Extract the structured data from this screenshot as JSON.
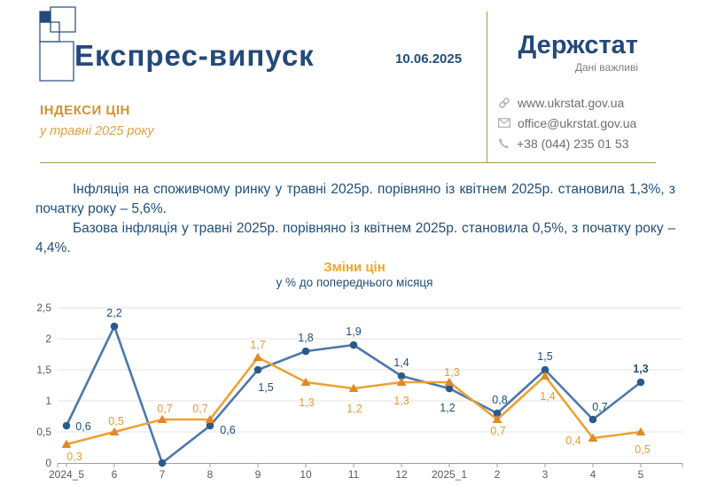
{
  "header": {
    "title": "Експрес-випуск",
    "date": "10.06.2025",
    "brand": {
      "name": "Держстат",
      "tagline": "Дані важливі"
    },
    "contacts": [
      {
        "icon": "link-icon",
        "text": "www.ukrstat.gov.ua"
      },
      {
        "icon": "email-icon",
        "text": "office@ukrstat.gov.ua"
      },
      {
        "icon": "phone-icon",
        "text": "+38 (044) 235 01 53"
      }
    ],
    "subject": {
      "heading": "ІНДЕКСИ ЦІН",
      "subheading": "у травні 2025 року"
    }
  },
  "body": {
    "paragraphs": [
      "Інфляція на споживчому ринку у травні 2025р. порівняно із квітнем 2025р. становила 1,3%, з початку року – 5,6%.",
      "Базова інфляція у травні 2025р. порівняно із квітнем 2025р. становила 0,5%, з початку року – 4,4%."
    ]
  },
  "chart_data": {
    "type": "line",
    "title": "Зміни цін",
    "subtitle": "у % до попереднього місяця",
    "categories": [
      "2024_5",
      "6",
      "7",
      "8",
      "9",
      "10",
      "11",
      "12",
      "2025_1",
      "2",
      "3",
      "4",
      "5"
    ],
    "ylim": [
      0,
      2.5
    ],
    "yticks": [
      "0",
      "0,5",
      "1",
      "1,5",
      "2",
      "2,5"
    ],
    "grid": true,
    "legend": "none",
    "colors": {
      "grid": "#e3e3e3",
      "axis": "#9e9e9e",
      "tick_text": "#595959"
    },
    "series": [
      {
        "marker": "circle",
        "line_color": "#4b79ab",
        "marker_color": "#2a5a8c",
        "label_color": "#1f4e79",
        "values": [
          0.6,
          2.2,
          0.0,
          0.6,
          1.5,
          1.8,
          1.9,
          1.4,
          1.2,
          0.8,
          1.5,
          0.7,
          1.3
        ],
        "labels": [
          {
            "text": "0,6",
            "dx": 19,
            "dy": 5
          },
          {
            "text": "2,2",
            "dx": 0,
            "dy": -11
          },
          null,
          {
            "text": "0,6",
            "dx": 20,
            "dy": 9
          },
          {
            "text": "1,5",
            "dx": 9,
            "dy": 24
          },
          {
            "text": "1,8",
            "dx": 0,
            "dy": -11
          },
          {
            "text": "1,9",
            "dx": 0,
            "dy": -11
          },
          {
            "text": "1,4",
            "dx": 0,
            "dy": -11
          },
          {
            "text": "1,2",
            "dx": -2,
            "dy": 26
          },
          {
            "text": "0,8",
            "dx": 3,
            "dy": -11
          },
          {
            "text": "1,5",
            "dx": 0,
            "dy": -11
          },
          {
            "text": "0,7",
            "dx": 8,
            "dy": -10
          },
          {
            "text": "1,3",
            "dx": 0,
            "dy": -11,
            "bold": true
          }
        ]
      },
      {
        "marker": "triangle",
        "line_color": "#eda133",
        "marker_color": "#e1882a",
        "label_color": "#e29a36",
        "values": [
          0.3,
          0.5,
          0.7,
          0.7,
          1.7,
          1.3,
          1.2,
          1.3,
          1.3,
          0.7,
          1.4,
          0.4,
          0.5
        ],
        "labels": [
          {
            "text": "0,3",
            "dx": 9,
            "dy": 18
          },
          {
            "text": "0,5",
            "dx": 2,
            "dy": -8
          },
          {
            "text": "0,7",
            "dx": 3,
            "dy": -8
          },
          {
            "text": "0,7",
            "dx": -11,
            "dy": -8
          },
          {
            "text": "1,7",
            "dx": 0,
            "dy": -10
          },
          {
            "text": "1,3",
            "dx": 1,
            "dy": 27
          },
          {
            "text": "1,2",
            "dx": 1,
            "dy": 27
          },
          {
            "text": "1,3",
            "dx": 0,
            "dy": 25
          },
          {
            "text": "1,3",
            "dx": 3,
            "dy": -7
          },
          {
            "text": "0,7",
            "dx": 1,
            "dy": 17
          },
          {
            "text": "1,4",
            "dx": 3,
            "dy": 27
          },
          {
            "text": "0,4",
            "dx": -22,
            "dy": 7
          },
          {
            "text": "0,5",
            "dx": 2,
            "dy": 24
          }
        ]
      }
    ]
  }
}
